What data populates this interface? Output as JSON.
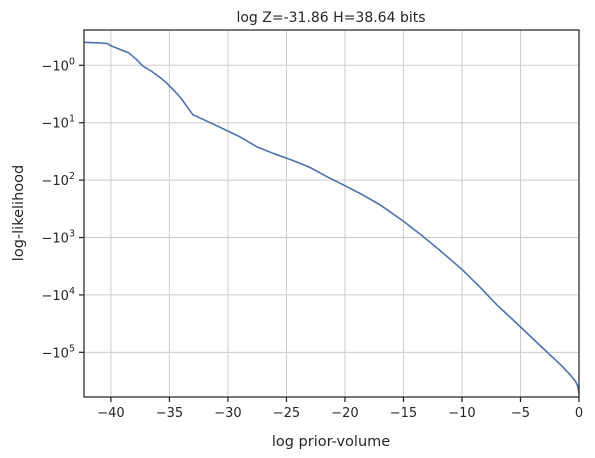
{
  "chart_data": {
    "type": "line",
    "title": "log Z=-31.86 H=38.64 bits",
    "xlabel": "log prior-volume",
    "ylabel": "log-likelihood",
    "xlim": [
      -42.3,
      0
    ],
    "ylim": [
      -0.385,
      -600000
    ],
    "yscale": "symlog",
    "grid": true,
    "xticks": [
      -40,
      -35,
      -30,
      -25,
      -20,
      -15,
      -10,
      -5,
      0
    ],
    "xtick_labels": [
      "−40",
      "−35",
      "−30",
      "−25",
      "−20",
      "−15",
      "−10",
      "−5",
      "0"
    ],
    "yticks": [
      -1,
      -10,
      -100,
      -1000,
      -10000,
      -100000
    ],
    "ytick_labels": [
      {
        "base": "−10",
        "exp": "0"
      },
      {
        "base": "−10",
        "exp": "1"
      },
      {
        "base": "−10",
        "exp": "2"
      },
      {
        "base": "−10",
        "exp": "3"
      },
      {
        "base": "−10",
        "exp": "4"
      },
      {
        "base": "−10",
        "exp": "5"
      }
    ],
    "series_color": "#4c72b0",
    "x": [
      -42.3,
      -41.0,
      -40.3,
      -40.0,
      -39.5,
      -38.5,
      -37.8,
      -37.3,
      -36.5,
      -35.8,
      -35.2,
      -34.6,
      -34.0,
      -33.5,
      -33.0,
      -32.0,
      -30.5,
      -29.0,
      -27.5,
      -26.0,
      -24.5,
      -23.0,
      -21.5,
      -20.0,
      -18.5,
      -17.0,
      -15.0,
      -13.5,
      -12.0,
      -10.0,
      -8.5,
      -7.0,
      -5.0,
      -3.0,
      -1.5,
      -0.8,
      -0.3,
      -0.1,
      0.0
    ],
    "y": [
      -0.6,
      -0.61,
      -0.62,
      -0.66,
      -0.7,
      -0.78,
      -0.9,
      -1.02,
      -1.28,
      -1.63,
      -2.07,
      -2.75,
      -3.77,
      -5.23,
      -7.25,
      -9.0,
      -12.5,
      -17.5,
      -26.5,
      -35.0,
      -45.0,
      -60.0,
      -88.0,
      -125.0,
      -180.0,
      -270.0,
      -520.0,
      -900.0,
      -1600.0,
      -3600.0,
      -7200.0,
      -15000.0,
      -36000.0,
      -88000.0,
      -170000.0,
      -240000.0,
      -320000.0,
      -390000.0,
      -520000.0
    ]
  }
}
